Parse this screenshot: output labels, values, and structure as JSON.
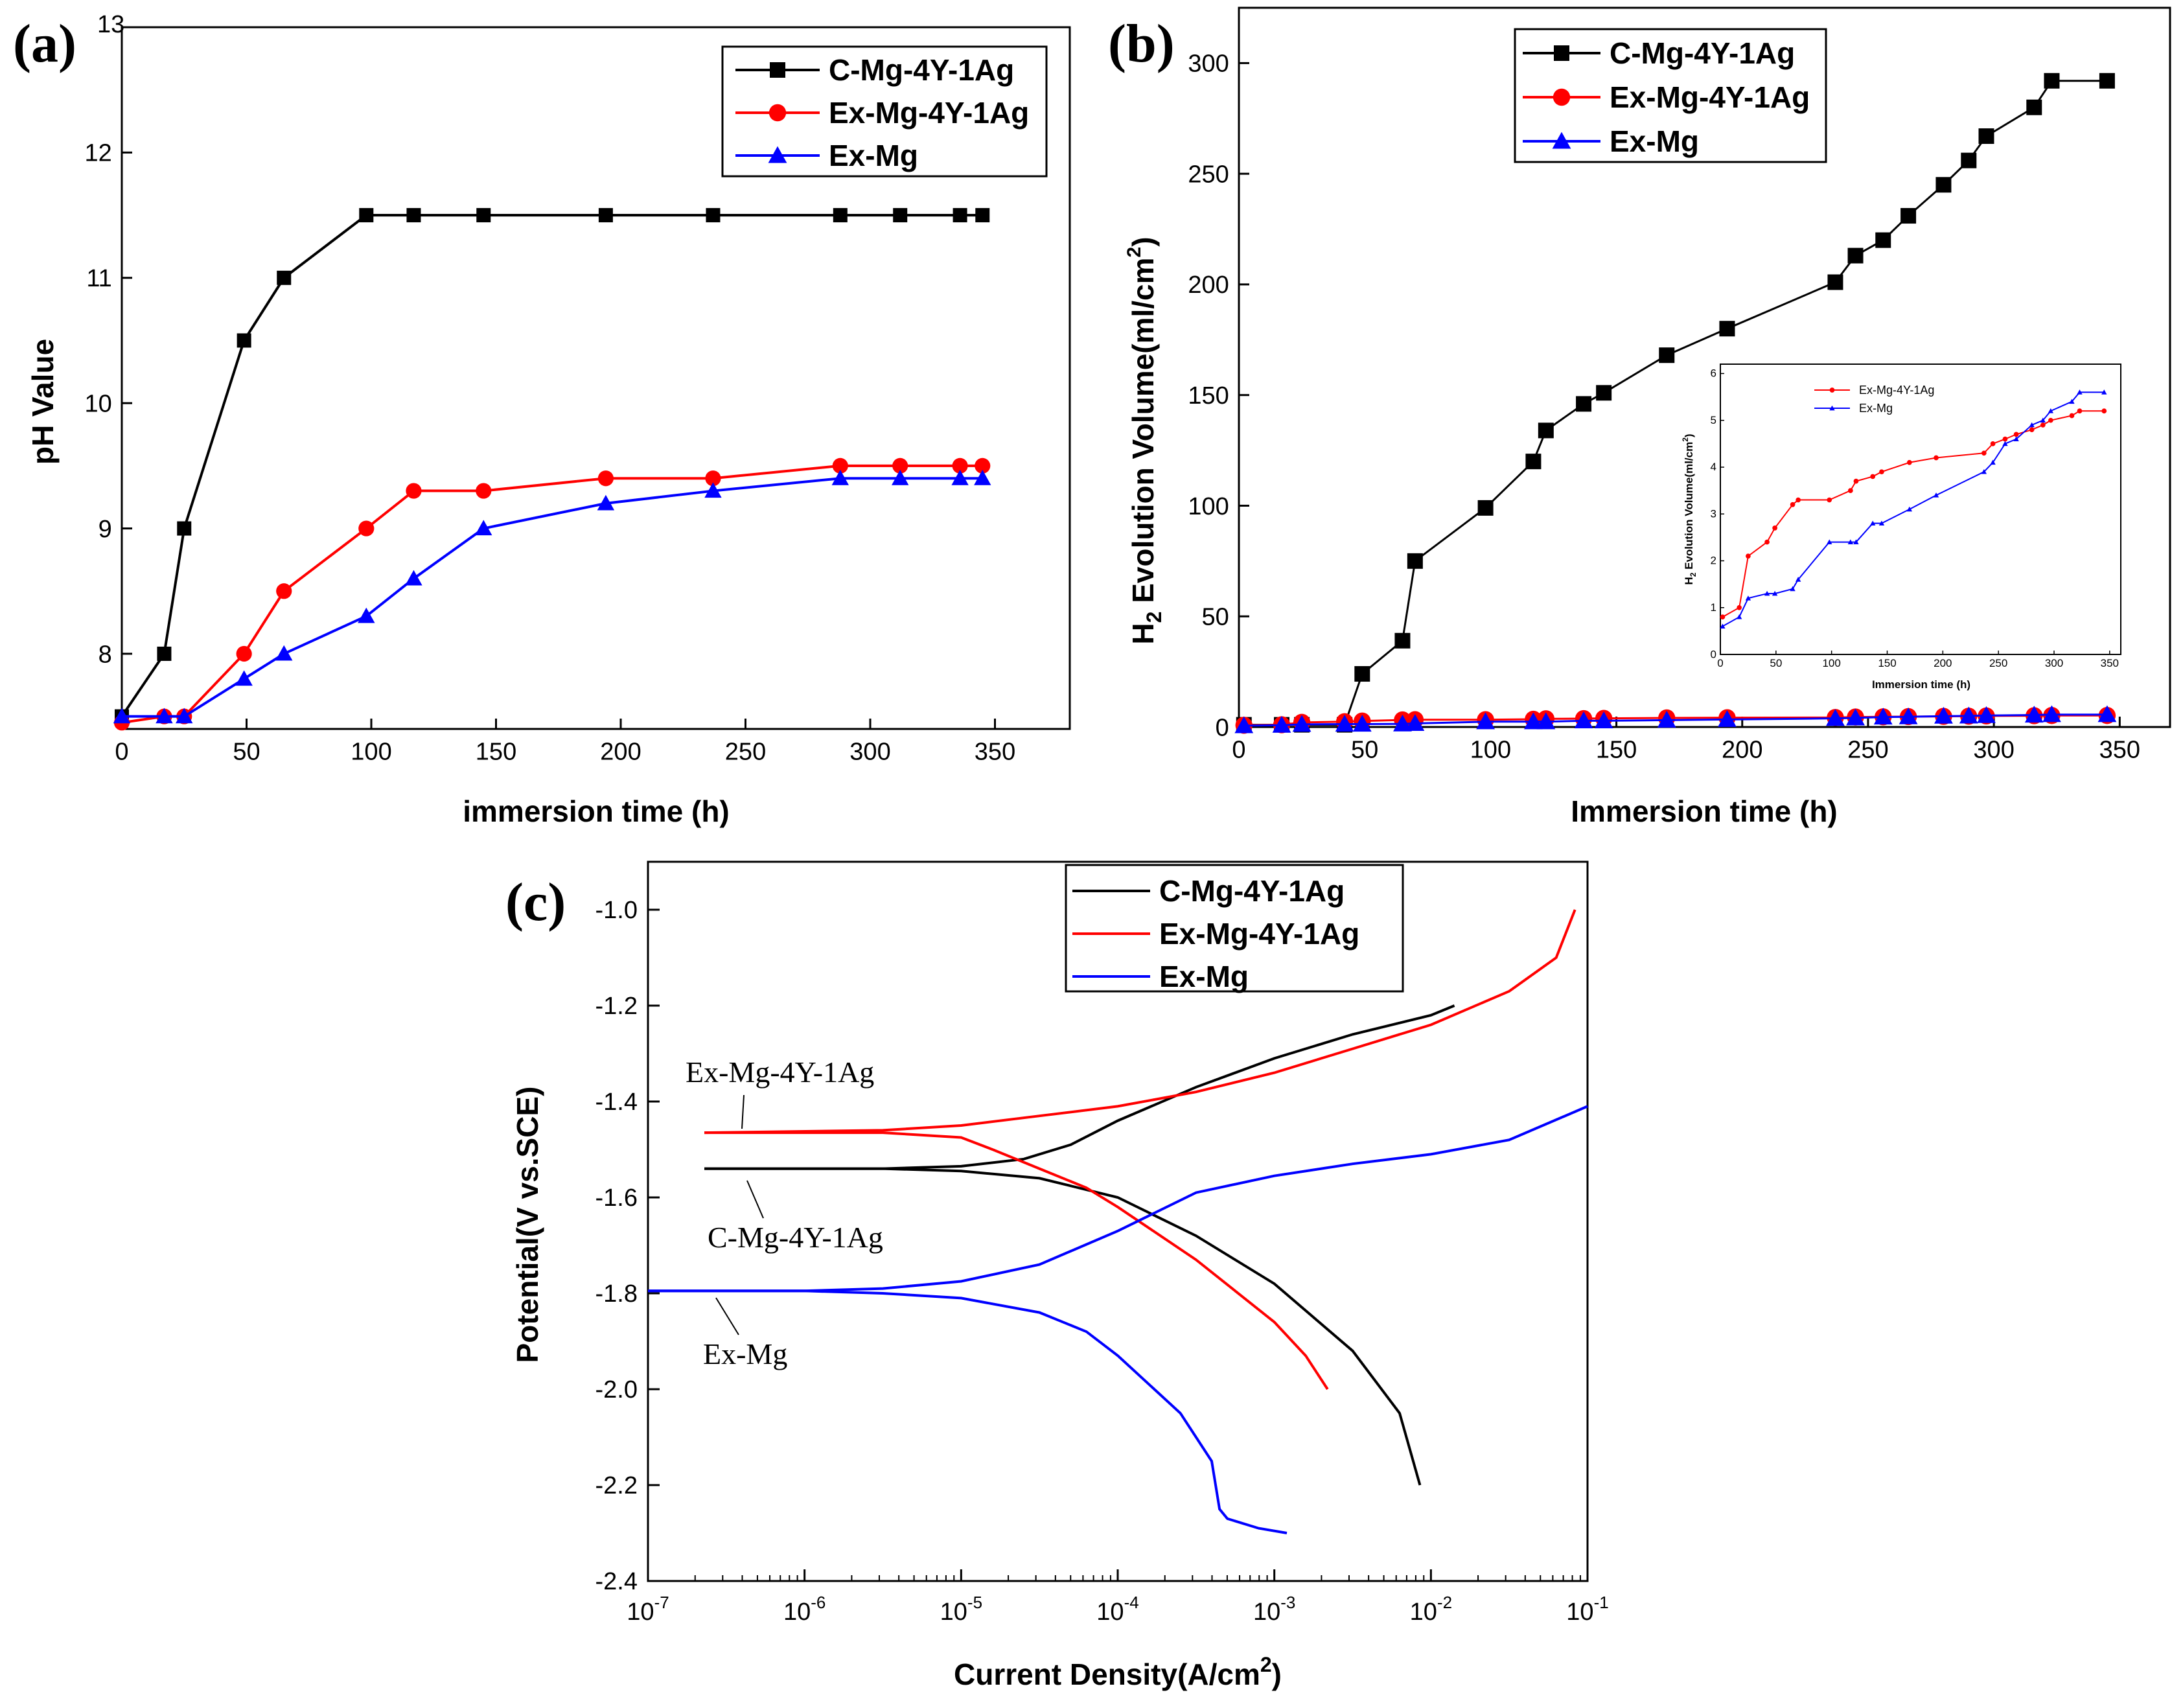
{
  "colors": {
    "c_alloy": "#000000",
    "ex_alloy": "#ff0000",
    "ex_mg": "#0000ff"
  },
  "chart_data": [
    {
      "panel": "(a)",
      "type": "line",
      "xlabel": "immersion time (h)",
      "ylabel": "pH Value",
      "xlim": [
        0,
        380
      ],
      "ylim": [
        7.4,
        13
      ],
      "xticks": [
        0,
        50,
        100,
        150,
        200,
        250,
        300,
        350
      ],
      "yticks": [
        8,
        9,
        10,
        11,
        12
      ],
      "top_tick_label": "13",
      "legend_position": "top-right",
      "series": [
        {
          "name": "C-Mg-4Y-1Ag",
          "marker": "square",
          "x": [
            0,
            17,
            25,
            49,
            65,
            98,
            117,
            145,
            194,
            237,
            288,
            312,
            336,
            345
          ],
          "y": [
            7.5,
            8.0,
            9.0,
            10.5,
            11.0,
            11.5,
            11.5,
            11.5,
            11.5,
            11.5,
            11.5,
            11.5,
            11.5,
            11.5
          ]
        },
        {
          "name": "Ex-Mg-4Y-1Ag",
          "marker": "circle",
          "x": [
            0,
            17,
            25,
            49,
            65,
            98,
            117,
            145,
            194,
            237,
            288,
            312,
            336,
            345
          ],
          "y": [
            7.45,
            7.5,
            7.5,
            8.0,
            8.5,
            9.0,
            9.3,
            9.3,
            9.4,
            9.4,
            9.5,
            9.5,
            9.5,
            9.5
          ]
        },
        {
          "name": "Ex-Mg",
          "marker": "triangle",
          "x": [
            0,
            17,
            25,
            49,
            65,
            98,
            117,
            145,
            194,
            237,
            288,
            312,
            336,
            345
          ],
          "y": [
            7.5,
            7.5,
            7.5,
            7.8,
            8.0,
            8.3,
            8.6,
            9.0,
            9.2,
            9.3,
            9.4,
            9.4,
            9.4,
            9.4
          ]
        }
      ]
    },
    {
      "panel": "(b)",
      "type": "line",
      "xlabel": "Immersion time (h)",
      "ylabel": "H2 Evolution Volume(ml/cm2)",
      "xlim": [
        0,
        370
      ],
      "ylim": [
        0,
        325
      ],
      "xticks": [
        0,
        50,
        100,
        150,
        200,
        250,
        300,
        350
      ],
      "yticks": [
        0,
        50,
        100,
        150,
        200,
        250,
        300
      ],
      "legend_position": "top-left",
      "series": [
        {
          "name": "C-Mg-4Y-1Ag",
          "marker": "square",
          "x": [
            2,
            17,
            25,
            42,
            49,
            65,
            70,
            98,
            117,
            122,
            137,
            145,
            170,
            194,
            237,
            245,
            256,
            266,
            280,
            290,
            297,
            316,
            323,
            345
          ],
          "y": [
            1,
            1,
            1,
            1,
            24,
            39,
            75,
            99,
            120,
            134,
            146,
            151,
            168,
            180,
            201,
            213,
            220,
            231,
            245,
            256,
            267,
            280,
            292,
            292
          ]
        },
        {
          "name": "Ex-Mg-4Y-1Ag",
          "marker": "circle",
          "x": [
            2,
            17,
            25,
            42,
            49,
            65,
            70,
            98,
            117,
            122,
            137,
            145,
            170,
            194,
            237,
            245,
            256,
            266,
            280,
            290,
            297,
            316,
            323,
            345
          ],
          "y": [
            0.8,
            1.0,
            2.1,
            2.4,
            2.7,
            3.2,
            3.3,
            3.3,
            3.5,
            3.7,
            3.8,
            3.9,
            4.1,
            4.2,
            4.3,
            4.5,
            4.6,
            4.7,
            4.8,
            4.9,
            5.0,
            5.1,
            5.2,
            5.2
          ]
        },
        {
          "name": "Ex-Mg",
          "marker": "triangle",
          "x": [
            2,
            17,
            25,
            42,
            49,
            65,
            70,
            98,
            117,
            122,
            137,
            145,
            170,
            194,
            237,
            245,
            256,
            266,
            280,
            290,
            297,
            316,
            323,
            345
          ],
          "y": [
            0.6,
            0.8,
            1.2,
            1.3,
            1.3,
            1.4,
            1.6,
            2.4,
            2.4,
            2.4,
            2.8,
            2.8,
            3.1,
            3.4,
            3.9,
            4.1,
            4.5,
            4.6,
            4.9,
            5.0,
            5.2,
            5.4,
            5.6,
            5.6
          ]
        }
      ],
      "inset": {
        "xlabel": "Immersion time (h)",
        "ylabel": "H2 Evolution Volume(ml/cm2)",
        "xlim": [
          0,
          360
        ],
        "ylim": [
          0,
          6.2
        ],
        "xticks": [
          0,
          50,
          100,
          150,
          200,
          250,
          300,
          350
        ],
        "yticks": [
          0,
          1,
          2,
          3,
          4,
          5,
          6
        ],
        "series_names": [
          "Ex-Mg-4Y-1Ag",
          "Ex-Mg"
        ]
      }
    },
    {
      "panel": "(c)",
      "type": "line",
      "xscale": "log",
      "xlabel": "Current Density(A/cm2)",
      "ylabel": "Potential(V vs.SCE)",
      "xlim_exp": [
        -7,
        -1
      ],
      "ylim": [
        -2.4,
        -0.9
      ],
      "xtick_exponents": [
        -7,
        -6,
        -5,
        -4,
        -3,
        -2,
        -1
      ],
      "yticks": [
        -2.4,
        -2.2,
        -2.0,
        -1.8,
        -1.6,
        -1.4,
        -1.2,
        -1.0
      ],
      "legend_position": "top-center",
      "series": [
        {
          "name": "C-Mg-4Y-1Ag",
          "log_i_anodic": [
            -6.64,
            -5.5,
            -5.0,
            -4.6,
            -4.3,
            -4.0,
            -3.5,
            -3.0,
            -2.5,
            -2.0,
            -1.85
          ],
          "e_anodic": [
            -1.54,
            -1.54,
            -1.535,
            -1.52,
            -1.49,
            -1.44,
            -1.37,
            -1.31,
            -1.26,
            -1.22,
            -1.2
          ],
          "log_i_cathodic": [
            -6.64,
            -5.5,
            -5.0,
            -4.5,
            -4.0,
            -3.5,
            -3.0,
            -2.5,
            -2.2,
            -2.07
          ],
          "e_cathodic": [
            -1.54,
            -1.54,
            -1.545,
            -1.56,
            -1.6,
            -1.68,
            -1.78,
            -1.92,
            -2.05,
            -2.2
          ]
        },
        {
          "name": "Ex-Mg-4Y-1Ag",
          "log_i_anodic": [
            -6.64,
            -5.5,
            -5.0,
            -4.5,
            -4.0,
            -3.5,
            -3.0,
            -2.5,
            -2.0,
            -1.5,
            -1.2,
            -1.08
          ],
          "e_anodic": [
            -1.465,
            -1.46,
            -1.45,
            -1.43,
            -1.41,
            -1.38,
            -1.34,
            -1.29,
            -1.24,
            -1.17,
            -1.1,
            -1.0
          ],
          "log_i_cathodic": [
            -6.64,
            -5.5,
            -5.0,
            -4.8,
            -4.5,
            -4.2,
            -4.0,
            -3.5,
            -3.0,
            -2.8,
            -2.66
          ],
          "e_cathodic": [
            -1.465,
            -1.465,
            -1.475,
            -1.5,
            -1.54,
            -1.58,
            -1.62,
            -1.73,
            -1.86,
            -1.93,
            -2.0
          ]
        },
        {
          "name": "Ex-Mg",
          "log_i_anodic": [
            -7.0,
            -6.0,
            -5.5,
            -5.0,
            -4.5,
            -4.0,
            -3.5,
            -3.0,
            -2.5,
            -2.0,
            -1.5,
            -1.0
          ],
          "e_anodic": [
            -1.795,
            -1.795,
            -1.79,
            -1.775,
            -1.74,
            -1.67,
            -1.59,
            -1.555,
            -1.53,
            -1.51,
            -1.48,
            -1.41
          ],
          "log_i_cathodic": [
            -7.0,
            -6.0,
            -5.5,
            -5.0,
            -4.5,
            -4.2,
            -4.0,
            -3.6,
            -3.4,
            -3.35,
            -3.3,
            -3.1,
            -2.92
          ],
          "e_cathodic": [
            -1.795,
            -1.795,
            -1.8,
            -1.81,
            -1.84,
            -1.88,
            -1.93,
            -2.05,
            -2.15,
            -2.25,
            -2.27,
            -2.29,
            -2.3
          ]
        }
      ],
      "annotations": [
        "Ex-Mg-4Y-1Ag",
        "C-Mg-4Y-1Ag",
        "Ex-Mg"
      ]
    }
  ]
}
